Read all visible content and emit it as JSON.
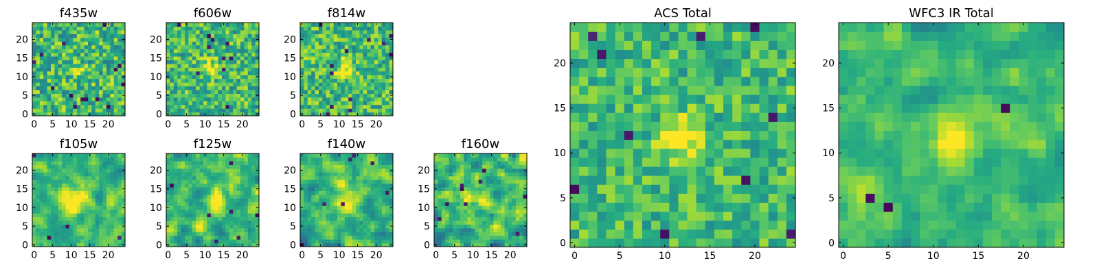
{
  "figure": {
    "colormap": "viridis",
    "panel_background": "#ffffff"
  },
  "chart_data": [
    {
      "type": "heatmap",
      "title": "f435w",
      "grid_size": 25,
      "xticks": [
        "0",
        "5",
        "10",
        "15",
        "20"
      ],
      "yticks": [
        "0",
        "5",
        "10",
        "15",
        "20"
      ],
      "xlim": [
        -0.5,
        24.5
      ],
      "ylim": [
        -0.5,
        24.5
      ],
      "source_center": [
        11.5,
        12.0
      ],
      "source_amplitude": 0.18,
      "source_width": 1.6,
      "noise_level": 0.32,
      "noise_smoothing": 0,
      "dark_pixel_count": 14,
      "seed": 11
    },
    {
      "type": "heatmap",
      "title": "f606w",
      "grid_size": 25,
      "xticks": [
        "0",
        "5",
        "10",
        "15",
        "20"
      ],
      "yticks": [
        "0",
        "5",
        "10",
        "15",
        "20"
      ],
      "xlim": [
        -0.5,
        24.5
      ],
      "ylim": [
        -0.5,
        24.5
      ],
      "source_center": [
        11.5,
        12.0
      ],
      "source_amplitude": 0.3,
      "source_width": 1.7,
      "noise_level": 0.3,
      "noise_smoothing": 0,
      "dark_pixel_count": 10,
      "seed": 22
    },
    {
      "type": "heatmap",
      "title": "f814w",
      "grid_size": 25,
      "xticks": [
        "0",
        "5",
        "10",
        "15",
        "20"
      ],
      "yticks": [
        "0",
        "5",
        "10",
        "15",
        "20"
      ],
      "xlim": [
        -0.5,
        24.5
      ],
      "ylim": [
        -0.5,
        24.5
      ],
      "source_center": [
        11.5,
        12.0
      ],
      "source_amplitude": 0.4,
      "source_width": 1.7,
      "noise_level": 0.3,
      "noise_smoothing": 0,
      "dark_pixel_count": 12,
      "seed": 33
    },
    {
      "type": "heatmap",
      "title": "f105w",
      "grid_size": 25,
      "xticks": [
        "0",
        "5",
        "10",
        "15",
        "20"
      ],
      "yticks": [
        "0",
        "5",
        "10",
        "15",
        "20"
      ],
      "xlim": [
        -0.5,
        24.5
      ],
      "ylim": [
        -0.5,
        24.5
      ],
      "source_center": [
        11.5,
        12.5
      ],
      "source_amplitude": 0.35,
      "source_width": 2.6,
      "noise_level": 0.24,
      "noise_smoothing": 1,
      "dark_pixel_count": 4,
      "seed": 44
    },
    {
      "type": "heatmap",
      "title": "f125w",
      "grid_size": 25,
      "xticks": [
        "0",
        "5",
        "10",
        "15",
        "20"
      ],
      "yticks": [
        "0",
        "5",
        "10",
        "15",
        "20"
      ],
      "xlim": [
        -0.5,
        24.5
      ],
      "ylim": [
        -0.5,
        24.5
      ],
      "source_center": [
        11.5,
        12.0
      ],
      "source_amplitude": 0.22,
      "source_width": 2.4,
      "noise_level": 0.3,
      "noise_smoothing": 1,
      "dark_pixel_count": 7,
      "seed": 55
    },
    {
      "type": "heatmap",
      "title": "f140w",
      "grid_size": 25,
      "xticks": [
        "0",
        "5",
        "10",
        "15",
        "20"
      ],
      "yticks": [
        "0",
        "5",
        "10",
        "15",
        "20"
      ],
      "xlim": [
        -0.5,
        24.5
      ],
      "ylim": [
        -0.5,
        24.5
      ],
      "source_center": [
        11.5,
        12.0
      ],
      "source_amplitude": 0.28,
      "source_width": 2.4,
      "noise_level": 0.28,
      "noise_smoothing": 1,
      "dark_pixel_count": 7,
      "seed": 66
    },
    {
      "type": "heatmap",
      "title": "f160w",
      "grid_size": 25,
      "xticks": [
        "0",
        "5",
        "10",
        "15",
        "20"
      ],
      "yticks": [
        "0",
        "5",
        "10",
        "15",
        "20"
      ],
      "xlim": [
        -0.5,
        24.5
      ],
      "ylim": [
        -0.5,
        24.5
      ],
      "source_center": [
        11.5,
        12.0
      ],
      "source_amplitude": 0.2,
      "source_width": 2.4,
      "noise_level": 0.34,
      "noise_smoothing": 1,
      "dark_pixel_count": 9,
      "seed": 77
    },
    {
      "type": "heatmap",
      "title": "ACS Total",
      "grid_size": 25,
      "xticks": [
        "0",
        "5",
        "10",
        "15",
        "20"
      ],
      "yticks": [
        "0",
        "5",
        "10",
        "15",
        "20"
      ],
      "xlim": [
        -0.5,
        24.5
      ],
      "ylim": [
        -0.5,
        24.5
      ],
      "source_center": [
        11.8,
        11.8
      ],
      "source_amplitude": 0.45,
      "source_width": 1.6,
      "noise_level": 0.24,
      "noise_smoothing": 0,
      "dark_pixel_count": 10,
      "seed": 88
    },
    {
      "type": "heatmap",
      "title": "WFC3 IR Total",
      "grid_size": 25,
      "xticks": [
        "0",
        "5",
        "10",
        "15",
        "20"
      ],
      "yticks": [
        "0",
        "5",
        "10",
        "15",
        "20"
      ],
      "xlim": [
        -0.5,
        24.5
      ],
      "ylim": [
        -0.5,
        24.5
      ],
      "source_center": [
        12.0,
        12.5
      ],
      "source_amplitude": 0.3,
      "source_width": 2.0,
      "noise_level": 0.2,
      "noise_smoothing": 1,
      "dark_pixel_count": 3,
      "seed": 99
    }
  ]
}
